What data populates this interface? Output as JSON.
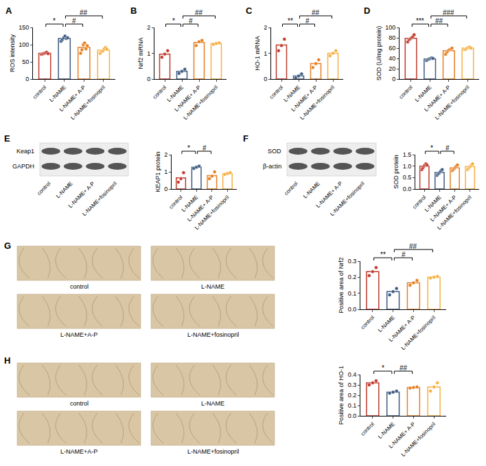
{
  "chart_data": [
    {
      "panel": "A",
      "type": "bar",
      "categories": [
        "control",
        "L-NAME",
        "L-NAME+ A-P",
        "L-NAME+fosinopril"
      ],
      "values": [
        75,
        118,
        92,
        84
      ],
      "points": [
        [
          72,
          73,
          75,
          76,
          78,
          74
        ],
        [
          110,
          115,
          120,
          125,
          118,
          120
        ],
        [
          75,
          85,
          100,
          105,
          88,
          97
        ],
        [
          75,
          80,
          82,
          88,
          92,
          87
        ]
      ],
      "colors": [
        "#c0392b",
        "#3d5a80",
        "#e67e22",
        "#f5b041"
      ],
      "ylabel": "ROS intensity",
      "ylim": [
        0,
        150
      ],
      "yticks": [
        0,
        50,
        100,
        150
      ],
      "grid": false,
      "comparisons": [
        {
          "from": "control",
          "to": "L-NAME",
          "label": "*"
        },
        {
          "from": "L-NAME",
          "to": "L-NAME+ A-P",
          "label": "#"
        },
        {
          "from": "L-NAME",
          "to": "L-NAME+fosinopril",
          "label": "##"
        }
      ]
    },
    {
      "panel": "B",
      "type": "bar",
      "categories": [
        "control",
        "L-NAME",
        "L-NAME+ A-P",
        "L-NAME+fosinopril"
      ],
      "values": [
        0.97,
        0.3,
        1.42,
        1.38
      ],
      "points": [
        [
          0.85,
          0.97,
          1.1
        ],
        [
          0.22,
          0.3,
          0.38
        ],
        [
          1.3,
          1.45,
          1.5
        ],
        [
          1.35,
          1.38,
          1.4
        ]
      ],
      "colors": [
        "#c0392b",
        "#3d5a80",
        "#e67e22",
        "#f5b041"
      ],
      "ylabel": "Nrf2 mRNA",
      "ylim": [
        0,
        2
      ],
      "yticks": [
        0,
        1,
        2
      ],
      "grid": false,
      "comparisons": [
        {
          "from": "control",
          "to": "L-NAME",
          "label": "*"
        },
        {
          "from": "L-NAME",
          "to": "L-NAME+ A-P",
          "label": "#"
        },
        {
          "from": "L-NAME",
          "to": "L-NAME+fosinopril",
          "label": "##"
        }
      ]
    },
    {
      "panel": "C",
      "type": "bar",
      "categories": [
        "control",
        "L-NAME",
        "L-NAME+ A-P",
        "L-NAME+fosinopril"
      ],
      "values": [
        1.32,
        0.12,
        0.6,
        1.0
      ],
      "points": [
        [
          1.1,
          1.3,
          1.55
        ],
        [
          0.05,
          0.12,
          0.2
        ],
        [
          0.45,
          0.6,
          0.75
        ],
        [
          0.9,
          1.0,
          1.1
        ]
      ],
      "colors": [
        "#c0392b",
        "#3d5a80",
        "#e67e22",
        "#f5b041"
      ],
      "ylabel": "HO-1 mRNA",
      "ylim": [
        0,
        2
      ],
      "yticks": [
        0,
        1,
        2
      ],
      "grid": false,
      "comparisons": [
        {
          "from": "control",
          "to": "L-NAME",
          "label": "**"
        },
        {
          "from": "L-NAME",
          "to": "L-NAME+ A-P",
          "label": "#"
        },
        {
          "from": "L-NAME",
          "to": "L-NAME+fosinopril",
          "label": "##"
        }
      ]
    },
    {
      "panel": "D",
      "type": "bar",
      "categories": [
        "control",
        "L-NAME",
        "L-NAME+ A-P",
        "L-NAME+fosinopril"
      ],
      "values": [
        79,
        39,
        55,
        60
      ],
      "points": [
        [
          72,
          76,
          78,
          80,
          82,
          86
        ],
        [
          36,
          38,
          39,
          40,
          41,
          40
        ],
        [
          48,
          52,
          55,
          57,
          58,
          60
        ],
        [
          57,
          58,
          60,
          61,
          62,
          60
        ]
      ],
      "colors": [
        "#c0392b",
        "#3d5a80",
        "#e67e22",
        "#f5b041"
      ],
      "ylabel": "SOD (U/mg protein)",
      "ylim": [
        0,
        100
      ],
      "yticks": [
        0,
        20,
        40,
        60,
        80,
        100
      ],
      "grid": false,
      "comparisons": [
        {
          "from": "control",
          "to": "L-NAME",
          "label": "***"
        },
        {
          "from": "L-NAME",
          "to": "L-NAME+ A-P",
          "label": "##"
        },
        {
          "from": "L-NAME",
          "to": "L-NAME+fosinopril",
          "label": "###"
        }
      ]
    },
    {
      "panel": "E",
      "type": "bar",
      "categories": [
        "control",
        "L-NAME",
        "L-NAME+ A-P",
        "L-NAME+fosinopril"
      ],
      "values": [
        0.65,
        1.27,
        0.78,
        0.9
      ],
      "points": [
        [
          0.4,
          0.6,
          0.95
        ],
        [
          1.2,
          1.27,
          1.33
        ],
        [
          0.6,
          0.75,
          1.0
        ],
        [
          0.85,
          0.9,
          0.95
        ]
      ],
      "colors": [
        "#c0392b",
        "#3d5a80",
        "#e67e22",
        "#f5b041"
      ],
      "ylabel": "KEAP1 protein",
      "ylim": [
        0,
        2
      ],
      "yticks": [
        0,
        1,
        2
      ],
      "grid": false,
      "comparisons": [
        {
          "from": "control",
          "to": "L-NAME",
          "label": "*"
        },
        {
          "from": "L-NAME",
          "to": "L-NAME+ A-P",
          "label": "#"
        }
      ]
    },
    {
      "panel": "F",
      "type": "bar",
      "categories": [
        "control",
        "L-NAME",
        "L-NAME+ A-P",
        "L-NAME+fosinopril"
      ],
      "values": [
        1.0,
        0.72,
        0.92,
        0.98
      ],
      "points": [
        [
          0.85,
          0.92,
          1.0,
          1.05,
          1.1,
          1.05
        ],
        [
          0.6,
          0.65,
          0.7,
          0.75,
          0.8,
          0.85
        ],
        [
          0.8,
          0.85,
          0.9,
          0.95,
          1.0,
          1.05
        ],
        [
          0.85,
          0.9,
          0.95,
          1.0,
          1.05,
          1.1
        ]
      ],
      "colors": [
        "#c0392b",
        "#3d5a80",
        "#e67e22",
        "#f5b041"
      ],
      "ylabel": "SOD protein",
      "ylim": [
        0,
        1.5
      ],
      "yticks": [
        {
          "value": 0,
          "label": "0.0"
        },
        0.5,
        {
          "value": 1,
          "label": "1.0"
        },
        1.5
      ],
      "grid": false,
      "comparisons": [
        {
          "from": "control",
          "to": "L-NAME",
          "label": "*"
        },
        {
          "from": "L-NAME",
          "to": "L-NAME+ A-P",
          "label": "#"
        }
      ]
    },
    {
      "panel": "G",
      "type": "bar",
      "categories": [
        "control",
        "L-NAME",
        "L-NAME+ A-P",
        "L-NAME+fosinopril"
      ],
      "values": [
        0.235,
        0.11,
        0.165,
        0.2
      ],
      "points": [
        [
          0.21,
          0.235,
          0.26
        ],
        [
          0.09,
          0.11,
          0.13
        ],
        [
          0.15,
          0.165,
          0.18
        ],
        [
          0.195,
          0.2,
          0.205
        ]
      ],
      "colors": [
        "#c0392b",
        "#3d5a80",
        "#e67e22",
        "#f5b041"
      ],
      "ylabel": "Positive area of Nrf2",
      "ylim": [
        0,
        0.3
      ],
      "yticks": [
        {
          "value": 0,
          "label": "0.0"
        },
        0.1,
        0.2,
        0.3
      ],
      "grid": false,
      "comparisons": [
        {
          "from": "control",
          "to": "L-NAME",
          "label": "**"
        },
        {
          "from": "L-NAME",
          "to": "L-NAME+ A-P",
          "label": "#"
        },
        {
          "from": "L-NAME",
          "to": "L-NAME+fosinopril",
          "label": "##"
        }
      ]
    },
    {
      "panel": "H",
      "type": "bar",
      "categories": [
        "control",
        "L-NAME",
        "L-NAME+ A-P",
        "L-NAME+fosinopril"
      ],
      "values": [
        0.32,
        0.23,
        0.275,
        0.28
      ],
      "points": [
        [
          0.3,
          0.32,
          0.34
        ],
        [
          0.22,
          0.23,
          0.24
        ],
        [
          0.27,
          0.275,
          0.28
        ],
        [
          0.24,
          0.28,
          0.32
        ]
      ],
      "colors": [
        "#c0392b",
        "#3d5a80",
        "#e67e22",
        "#f5b041"
      ],
      "ylabel": "Positive area of HO-1",
      "ylim": [
        0,
        0.4
      ],
      "yticks": [
        {
          "value": 0,
          "label": "0.0"
        },
        0.1,
        0.2,
        0.3,
        0.4
      ],
      "grid": false,
      "comparisons": [
        {
          "from": "control",
          "to": "L-NAME",
          "label": "*"
        },
        {
          "from": "L-NAME",
          "to": "L-NAME+ A-P",
          "label": "##"
        }
      ]
    }
  ],
  "blots": [
    {
      "panel": "E",
      "rows": [
        "Keap1",
        "GAPDH"
      ],
      "lanes": [
        "control",
        "L-NAME",
        "L-NAME+ A-P",
        "L-NAME+fosinopril"
      ]
    },
    {
      "panel": "F",
      "rows": [
        "SOD",
        "β-actin"
      ],
      "lanes": [
        "control",
        "L-NAME",
        "L-NAME+ A-P",
        "L-NAME+fosinopril"
      ]
    }
  ],
  "micrographs": [
    {
      "panel": "G",
      "labels": [
        "control",
        "L-NAME",
        "L-NAME+A-P",
        "L-NAME+fosinopril"
      ]
    },
    {
      "panel": "H",
      "labels": [
        "control",
        "L-NAME",
        "L-NAME+A-P",
        "L-NAME+fosinopril"
      ]
    }
  ]
}
